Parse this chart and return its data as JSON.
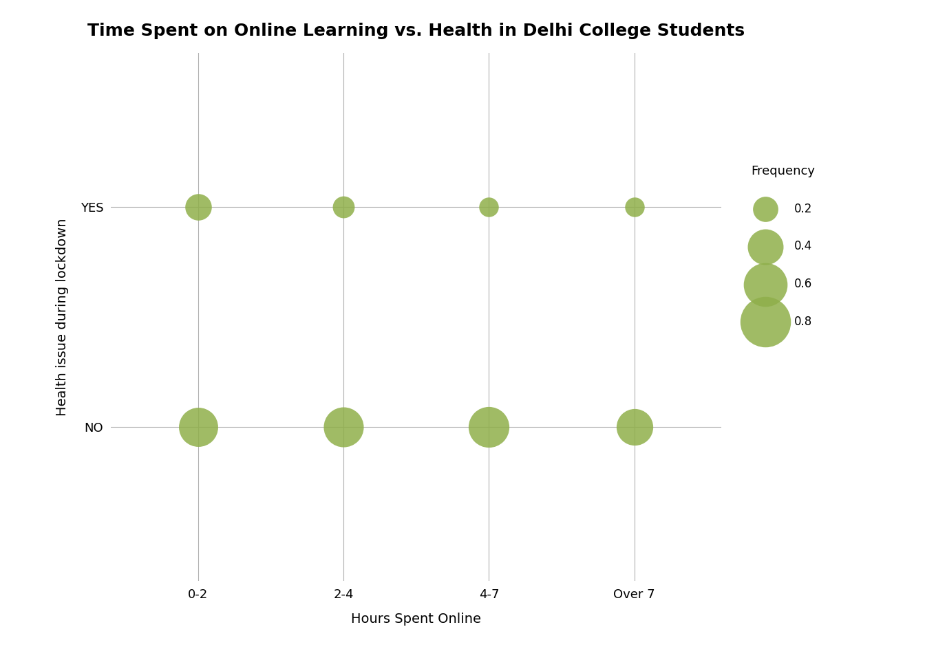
{
  "title": "Time Spent on Online Learning vs. Health in Delhi College Students",
  "xlabel": "Hours Spent Online",
  "ylabel": "Health issue during lockdown",
  "x_categories": [
    "0-2",
    "2-4",
    "4-7",
    "Over 7"
  ],
  "y_categories": [
    "NO",
    "YES"
  ],
  "dot_color": "#8faf4a",
  "background_color": "#ffffff",
  "grid_color": "#b0b0b0",
  "frequencies": {
    "YES": {
      "0-2": 0.22,
      "2-4": 0.15,
      "4-7": 0.12,
      "Over 7": 0.12
    },
    "NO": {
      "0-2": 0.48,
      "2-4": 0.5,
      "4-7": 0.52,
      "Over 7": 0.42
    }
  },
  "legend_values": [
    0.2,
    0.4,
    0.6,
    0.8
  ],
  "legend_title": "Frequency",
  "scale_factor": 3500,
  "title_fontsize": 18,
  "axis_label_fontsize": 14,
  "tick_fontsize": 13
}
